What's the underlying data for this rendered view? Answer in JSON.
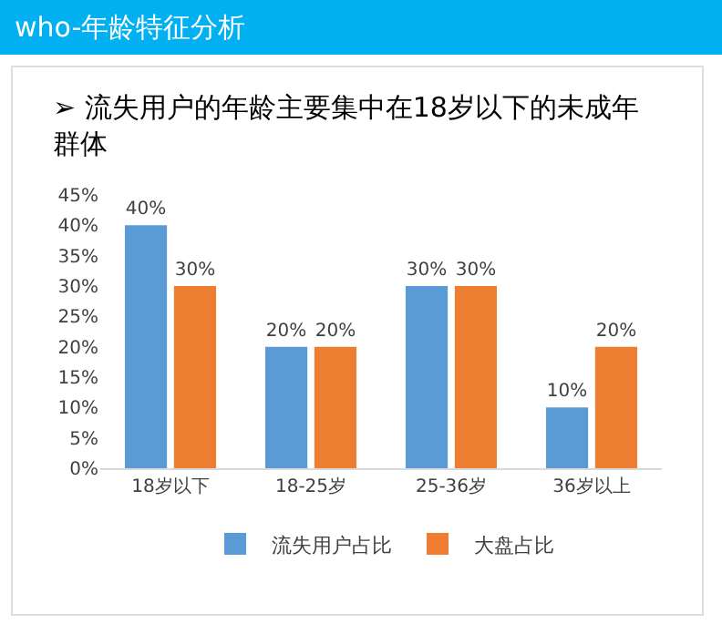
{
  "chart_data": {
    "type": "bar",
    "title": "who-年龄特征分析",
    "subtitle": "➢ 流失用户的年龄主要集中在18岁以下的未成年群体",
    "categories": [
      "18岁以下",
      "18-25岁",
      "25-36岁",
      "36岁以上"
    ],
    "series": [
      {
        "name": "流失用户占比",
        "color": "#5b9bd5",
        "values": [
          40,
          20,
          30,
          10
        ],
        "value_labels": [
          "40%",
          "20%",
          "30%",
          "10%"
        ]
      },
      {
        "name": "大盘占比",
        "color": "#ed7d31",
        "values": [
          30,
          20,
          30,
          20
        ],
        "value_labels": [
          "30%",
          "20%",
          "30%",
          "20%"
        ]
      }
    ],
    "ylim": [
      0,
      45
    ],
    "yticks": [
      {
        "value": 0,
        "label": "0%"
      },
      {
        "value": 5,
        "label": "5%"
      },
      {
        "value": 10,
        "label": "10%"
      },
      {
        "value": 15,
        "label": "15%"
      },
      {
        "value": 20,
        "label": "20%"
      },
      {
        "value": 25,
        "label": "25%"
      },
      {
        "value": 30,
        "label": "30%"
      },
      {
        "value": 35,
        "label": "35%"
      },
      {
        "value": 40,
        "label": "40%"
      },
      {
        "value": 45,
        "label": "45%"
      }
    ],
    "grid": false,
    "legend": "bottom"
  }
}
